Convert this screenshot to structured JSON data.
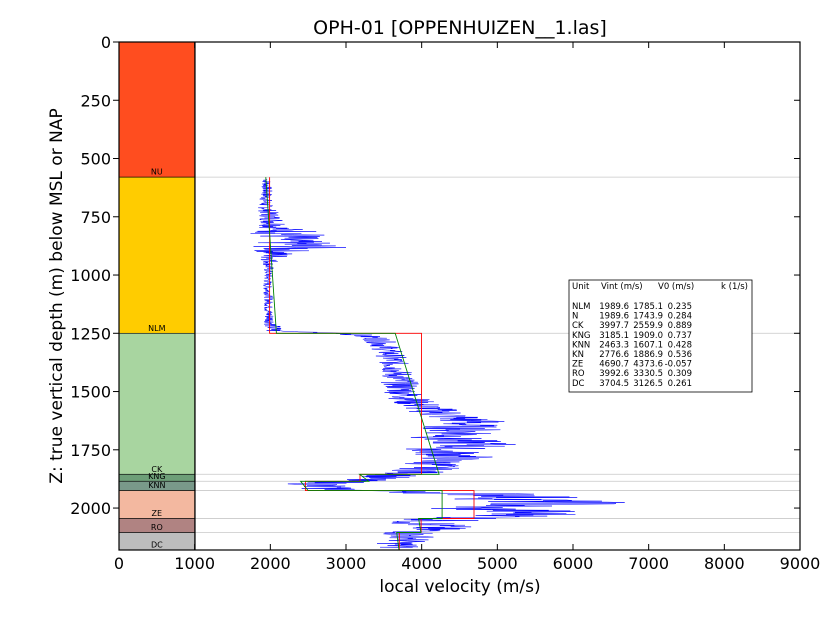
{
  "chart_data": {
    "type": "line",
    "title": "OPH-01 [OPPENHUIZEN__1.las]",
    "xlabel": "local velocity (m/s)",
    "ylabel": "Z: true vertical depth (m) below MSL or NAP",
    "xlim": [
      0,
      9000
    ],
    "ylim": [
      2180,
      0
    ],
    "x_ticks": [
      "0",
      "1000",
      "2000",
      "3000",
      "4000",
      "5000",
      "6000",
      "7000",
      "8000",
      "9000"
    ],
    "y_ticks": [
      "0",
      "250",
      "500",
      "750",
      "1000",
      "1250",
      "1500",
      "1750",
      "2000"
    ],
    "grid": false,
    "colors": {
      "log": "#0000ff",
      "interval_velocity": "#ff0000",
      "linear_model": "#008000",
      "boundary": "#c8c8c8"
    },
    "units": [
      {
        "name": "NU",
        "top": 0,
        "base": 580,
        "color": "#ff4d1f"
      },
      {
        "name": "NLM",
        "top": 580,
        "base": 1250,
        "color": "#ffcc00"
      },
      {
        "name": "CK",
        "top": 1250,
        "base": 1855,
        "color": "#a8d5a0"
      },
      {
        "name": "KNG",
        "top": 1855,
        "base": 1885,
        "color": "#6d9f78"
      },
      {
        "name": "KNN",
        "top": 1885,
        "base": 1925,
        "color": "#79998a"
      },
      {
        "name": "ZE",
        "top": 1925,
        "base": 2045,
        "color": "#f3b8a0"
      },
      {
        "name": "RO",
        "top": 2045,
        "base": 2105,
        "color": "#b08382"
      },
      {
        "name": "DC",
        "top": 2105,
        "base": 2180,
        "color": "#bdbdbd"
      }
    ],
    "table_header": {
      "unit": "Unit",
      "vint": "Vint (m/s)",
      "v0": "V0 (m/s)",
      "k": "k (1/s)"
    },
    "table": [
      {
        "unit": "NLM",
        "vint": "1989.6",
        "v0": "1785.1",
        "k": "0.235"
      },
      {
        "unit": "N",
        "vint": "1989.6",
        "v0": "1743.9",
        "k": "0.284"
      },
      {
        "unit": "CK",
        "vint": "3997.7",
        "v0": "2559.9",
        "k": "0.889"
      },
      {
        "unit": "KNG",
        "vint": "3185.1",
        "v0": "1909.0",
        "k": "0.737"
      },
      {
        "unit": "KNN",
        "vint": "2463.3",
        "v0": "1607.1",
        "k": "0.428"
      },
      {
        "unit": "KN",
        "vint": "2776.6",
        "v0": "1886.9",
        "k": "0.536"
      },
      {
        "unit": "ZE",
        "vint": "4690.7",
        "v0": "4373.6",
        "k": "-0.057"
      },
      {
        "unit": "RO",
        "vint": "3992.6",
        "v0": "3330.5",
        "k": "0.309"
      },
      {
        "unit": "DC",
        "vint": "3704.5",
        "v0": "3126.5",
        "k": "0.261"
      }
    ],
    "interval_velocity_steps": [
      {
        "top": 580,
        "base": 1250,
        "v": 1990
      },
      {
        "top": 1250,
        "base": 1855,
        "v": 3998
      },
      {
        "top": 1855,
        "base": 1885,
        "v": 3185
      },
      {
        "top": 1885,
        "base": 1925,
        "v": 2463
      },
      {
        "top": 1925,
        "base": 2045,
        "v": 4691
      },
      {
        "top": 2045,
        "base": 2105,
        "v": 3993
      },
      {
        "top": 2105,
        "base": 2180,
        "v": 3705
      }
    ],
    "linear_model_segments": [
      {
        "top": 580,
        "base": 1250,
        "v_top": 1940,
        "v_base": 2080
      },
      {
        "top": 1250,
        "base": 1855,
        "v_top": 3650,
        "v_base": 4230
      },
      {
        "top": 1855,
        "base": 1885,
        "v_top": 3180,
        "v_base": 3300
      },
      {
        "top": 1885,
        "base": 1925,
        "v_top": 2400,
        "v_base": 2500
      },
      {
        "top": 1925,
        "base": 2045,
        "v_top": 4270,
        "v_base": 4270
      },
      {
        "top": 2045,
        "base": 2105,
        "v_top": 3960,
        "v_base": 3990
      },
      {
        "top": 2105,
        "base": 2180,
        "v_top": 3670,
        "v_base": 3700
      }
    ],
    "sonic_log": {
      "depths": [
        590,
        650,
        700,
        750,
        800,
        820,
        850,
        880,
        900,
        950,
        1000,
        1050,
        1100,
        1150,
        1200,
        1240,
        1250,
        1270,
        1300,
        1350,
        1400,
        1450,
        1500,
        1550,
        1600,
        1630,
        1650,
        1680,
        1700,
        1730,
        1750,
        1780,
        1800,
        1830,
        1855,
        1870,
        1885,
        1900,
        1915,
        1925,
        1935,
        1950,
        1960,
        1980,
        2000,
        2010,
        2030,
        2045,
        2060,
        2080,
        2100,
        2110,
        2130,
        2150,
        2170
      ],
      "values": [
        1950,
        1950,
        1930,
        2000,
        2100,
        2300,
        2200,
        2400,
        2100,
        1980,
        1970,
        1960,
        1980,
        1970,
        2000,
        2050,
        3000,
        3400,
        3500,
        3600,
        3650,
        3700,
        3750,
        3900,
        4300,
        4700,
        4500,
        4600,
        4300,
        4800,
        4200,
        4500,
        4200,
        4100,
        3800,
        3400,
        3000,
        2600,
        2700,
        3200,
        4500,
        5500,
        5200,
        5900,
        4500,
        5300,
        5500,
        4500,
        4000,
        4200,
        4000,
        3800,
        3900,
        3700,
        3700
      ],
      "spread": [
        60,
        80,
        100,
        150,
        250,
        600,
        400,
        700,
        300,
        80,
        60,
        60,
        60,
        60,
        80,
        150,
        200,
        200,
        200,
        200,
        200,
        250,
        250,
        300,
        400,
        500,
        500,
        600,
        500,
        600,
        500,
        500,
        400,
        400,
        400,
        400,
        400,
        500,
        400,
        500,
        800,
        800,
        800,
        1000,
        600,
        800,
        700,
        700,
        500,
        500,
        400,
        400,
        300,
        300,
        300
      ]
    }
  }
}
